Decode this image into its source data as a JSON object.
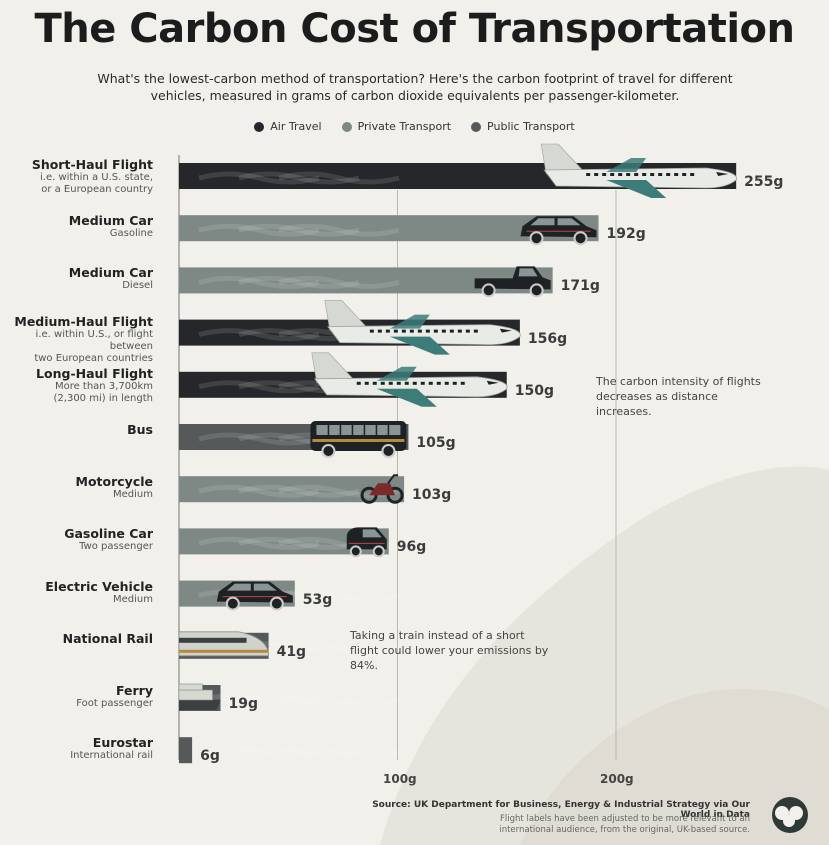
{
  "title": "The Carbon Cost of Transportation",
  "subtitle": "What's the lowest-carbon method of transportation? Here's the carbon footprint of travel for different vehicles, measured in grams of carbon dioxide equivalents per passenger-kilometer.",
  "legend": [
    {
      "label": "Air Travel",
      "color": "#25272a"
    },
    {
      "label": "Private Transport",
      "color": "#7e8885"
    },
    {
      "label": "Public Transport",
      "color": "#55595a"
    }
  ],
  "chart_data": {
    "type": "bar",
    "orientation": "horizontal",
    "xlim": [
      0,
      255
    ],
    "x_ticks": [
      100,
      200
    ],
    "x_tick_labels": [
      "100g",
      "200g"
    ],
    "rows": [
      {
        "name": "Short-Haul Flight",
        "sub": [
          "i.e. within a U.S. state,",
          "or a European country"
        ],
        "value": 255,
        "label": "255g",
        "category": "Air Travel",
        "icon": "airplane-icon"
      },
      {
        "name": "Medium Car",
        "sub": [
          "Gasoline"
        ],
        "value": 192,
        "label": "192g",
        "category": "Private Transport",
        "icon": "suv-icon"
      },
      {
        "name": "Medium Car",
        "sub": [
          "Diesel"
        ],
        "value": 171,
        "label": "171g",
        "category": "Private Transport",
        "icon": "pickup-truck-icon"
      },
      {
        "name": "Medium-Haul Flight",
        "sub": [
          "i.e. within U.S., or flight between",
          "two European countries"
        ],
        "value": 156,
        "label": "156g",
        "category": "Air Travel",
        "icon": "airplane-icon"
      },
      {
        "name": "Long-Haul Flight",
        "sub": [
          "More than 3,700km",
          "(2,300 mi) in length"
        ],
        "value": 150,
        "label": "150g",
        "category": "Air Travel",
        "icon": "airplane-icon"
      },
      {
        "name": "Bus",
        "sub": [],
        "value": 105,
        "label": "105g",
        "category": "Public Transport",
        "icon": "bus-icon"
      },
      {
        "name": "Motorcycle",
        "sub": [
          "Medium"
        ],
        "value": 103,
        "label": "103g",
        "category": "Private Transport",
        "icon": "motorcycle-icon"
      },
      {
        "name": "Gasoline Car",
        "sub": [
          "Two passenger"
        ],
        "value": 96,
        "label": "96g",
        "category": "Private Transport",
        "icon": "small-car-icon"
      },
      {
        "name": "Electric Vehicle",
        "sub": [
          "Medium"
        ],
        "value": 53,
        "label": "53g",
        "category": "Private Transport",
        "icon": "electric-car-icon"
      },
      {
        "name": "National Rail",
        "sub": [],
        "value": 41,
        "label": "41g",
        "category": "Public Transport",
        "icon": "train-icon"
      },
      {
        "name": "Ferry",
        "sub": [
          "Foot passenger"
        ],
        "value": 19,
        "label": "19g",
        "category": "Public Transport",
        "icon": "ferry-icon"
      },
      {
        "name": "Eurostar",
        "sub": [
          "International rail"
        ],
        "value": 6,
        "label": "6g",
        "category": "Public Transport",
        "icon": ""
      }
    ],
    "annotations": [
      "The carbon intensity of flights decreases as distance increases.",
      "Taking a train instead of a short flight could lower your emissions by 84%."
    ]
  },
  "source": "Source: UK Department for Business, Energy & Industrial Strategy via Our World in Data",
  "note": "Flight labels have been adjusted to be more relevant to an international audience, from the original, UK-based source."
}
